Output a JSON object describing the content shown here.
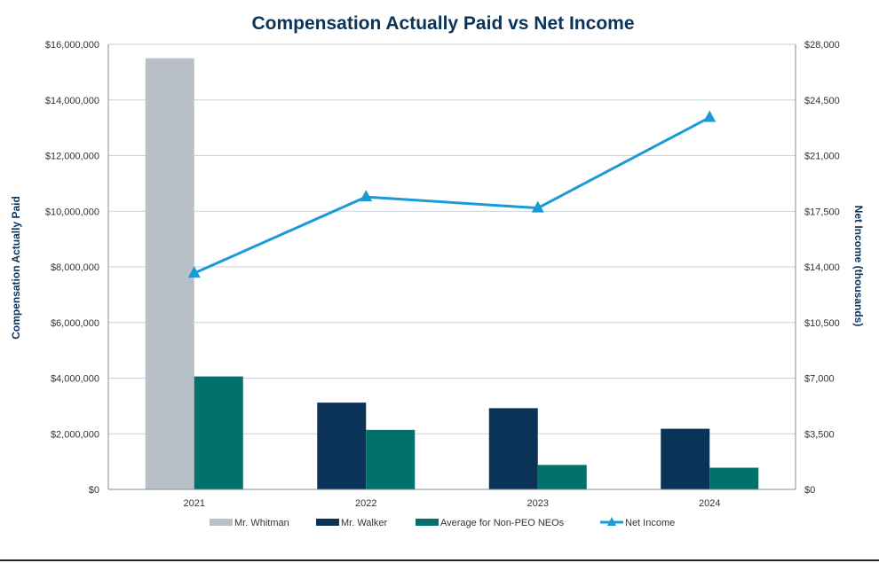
{
  "chart_data": {
    "type": "bar",
    "title": "Compensation Actually Paid vs Net Income",
    "categories": [
      "2021",
      "2022",
      "2023",
      "2024"
    ],
    "ylabel": "Compensation Actually Paid",
    "y2label": "Net Income (thousands)",
    "ylim": [
      0,
      16000000
    ],
    "y2lim": [
      0,
      28000
    ],
    "yticks": [
      "$0",
      "$2,000,000",
      "$4,000,000",
      "$6,000,000",
      "$8,000,000",
      "$10,000,000",
      "$12,000,000",
      "$14,000,000",
      "$16,000,000"
    ],
    "y2ticks": [
      "$0",
      "$3,500",
      "$7,000",
      "$10,500",
      "$14,000",
      "$17,500",
      "$21,000",
      "$24,500",
      "$28,000"
    ],
    "grid": true,
    "legend_position": "bottom",
    "series": [
      {
        "name": "Mr. Whitman",
        "type": "bar",
        "color": "#b9bfc7",
        "values": [
          15500000,
          null,
          null,
          null
        ]
      },
      {
        "name": "Mr. Walker",
        "type": "bar",
        "color": "#0b3357",
        "values": [
          null,
          3120000,
          2920000,
          2180000
        ]
      },
      {
        "name": "Average for Non-PEO NEOs",
        "type": "bar",
        "color": "#00716b",
        "values": [
          4060000,
          2140000,
          880000,
          780000
        ]
      },
      {
        "name": "Net Income",
        "type": "line",
        "axis": "secondary",
        "color": "#1a9ad6",
        "marker": "triangle",
        "values": [
          13600,
          18400,
          17700,
          23400
        ]
      }
    ]
  }
}
